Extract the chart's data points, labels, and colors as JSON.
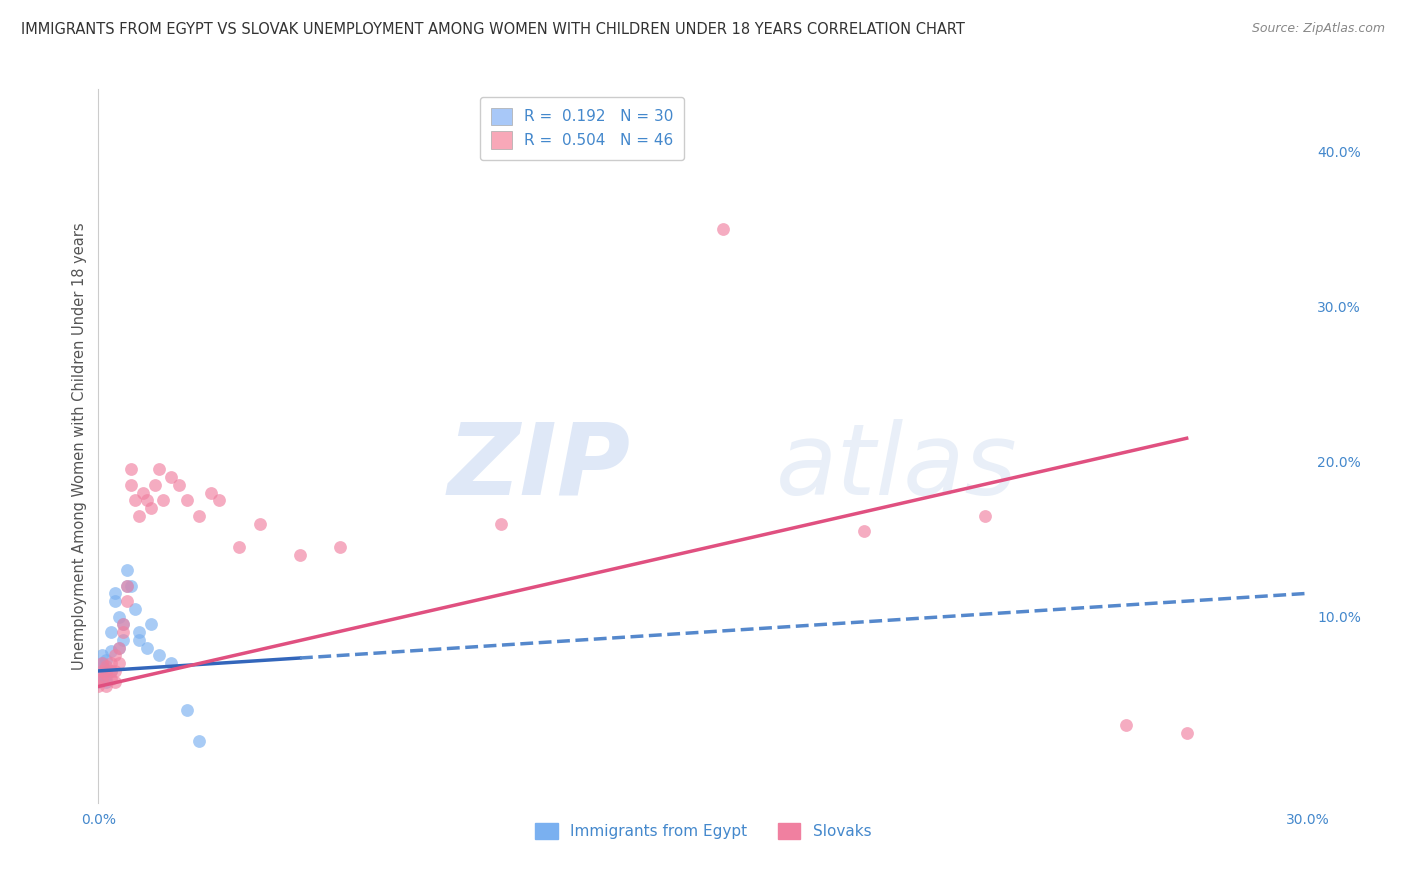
{
  "title": "IMMIGRANTS FROM EGYPT VS SLOVAK UNEMPLOYMENT AMONG WOMEN WITH CHILDREN UNDER 18 YEARS CORRELATION CHART",
  "source": "Source: ZipAtlas.com",
  "ylabel": "Unemployment Among Women with Children Under 18 years",
  "xlim": [
    0.0,
    0.3
  ],
  "ylim": [
    -0.02,
    0.44
  ],
  "xticks": [
    0.0,
    0.05,
    0.1,
    0.15,
    0.2,
    0.25,
    0.3
  ],
  "xtick_labels": [
    "0.0%",
    "",
    "",
    "",
    "",
    "",
    "30.0%"
  ],
  "yticks_right": [
    0.0,
    0.1,
    0.2,
    0.3,
    0.4
  ],
  "ytick_labels_right": [
    "",
    "10.0%",
    "20.0%",
    "30.0%",
    "40.0%"
  ],
  "legend_entries": [
    {
      "label": "R =  0.192   N = 30",
      "color": "#a8c8f8"
    },
    {
      "label": "R =  0.504   N = 46",
      "color": "#f8a8b8"
    }
  ],
  "series_blue": {
    "name": "Immigrants from Egypt",
    "color": "#7ab0f0",
    "x": [
      0.0,
      0.0,
      0.001,
      0.001,
      0.001,
      0.002,
      0.002,
      0.002,
      0.002,
      0.003,
      0.003,
      0.003,
      0.004,
      0.004,
      0.005,
      0.005,
      0.006,
      0.006,
      0.007,
      0.007,
      0.008,
      0.009,
      0.01,
      0.01,
      0.012,
      0.013,
      0.015,
      0.018,
      0.022,
      0.025
    ],
    "y": [
      0.063,
      0.058,
      0.07,
      0.075,
      0.068,
      0.065,
      0.06,
      0.058,
      0.072,
      0.065,
      0.078,
      0.09,
      0.11,
      0.115,
      0.1,
      0.08,
      0.095,
      0.085,
      0.12,
      0.13,
      0.12,
      0.105,
      0.09,
      0.085,
      0.08,
      0.095,
      0.075,
      0.07,
      0.04,
      0.02
    ],
    "trend_x": [
      0.0,
      0.3
    ],
    "trend_y": [
      0.065,
      0.115
    ],
    "trend_dashed": true
  },
  "series_pink": {
    "name": "Slovaks",
    "color": "#f080a0",
    "x": [
      0.0,
      0.0,
      0.001,
      0.001,
      0.001,
      0.002,
      0.002,
      0.002,
      0.003,
      0.003,
      0.003,
      0.004,
      0.004,
      0.004,
      0.005,
      0.005,
      0.006,
      0.006,
      0.007,
      0.007,
      0.008,
      0.008,
      0.009,
      0.01,
      0.011,
      0.012,
      0.013,
      0.014,
      0.015,
      0.016,
      0.018,
      0.02,
      0.022,
      0.025,
      0.028,
      0.03,
      0.035,
      0.04,
      0.05,
      0.06,
      0.1,
      0.155,
      0.19,
      0.22,
      0.255,
      0.27
    ],
    "y": [
      0.06,
      0.055,
      0.065,
      0.06,
      0.07,
      0.063,
      0.055,
      0.068,
      0.06,
      0.065,
      0.07,
      0.058,
      0.065,
      0.075,
      0.08,
      0.07,
      0.09,
      0.095,
      0.11,
      0.12,
      0.185,
      0.195,
      0.175,
      0.165,
      0.18,
      0.175,
      0.17,
      0.185,
      0.195,
      0.175,
      0.19,
      0.185,
      0.175,
      0.165,
      0.18,
      0.175,
      0.145,
      0.16,
      0.14,
      0.145,
      0.16,
      0.35,
      0.155,
      0.165,
      0.03,
      0.025
    ],
    "trend_x": [
      0.0,
      0.27
    ],
    "trend_y": [
      0.055,
      0.215
    ],
    "trend_dashed": false
  },
  "watermark_zip": "ZIP",
  "watermark_atlas": "atlas",
  "background_color": "#ffffff",
  "grid_color": "#d0d0d0",
  "title_color": "#333333",
  "axis_color": "#4488cc",
  "axis_label_color": "#555555"
}
